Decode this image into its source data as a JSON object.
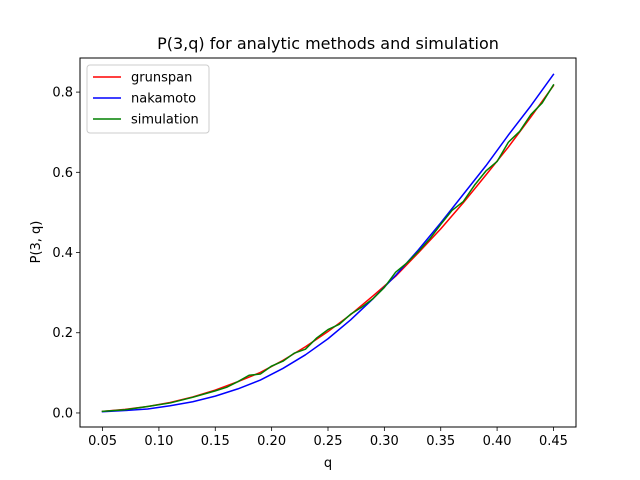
{
  "chart_data": {
    "type": "line",
    "title": "P(3,q) for analytic methods and simulation",
    "xlabel": "q",
    "ylabel": "P(3, q)",
    "xlim": [
      0.03,
      0.47
    ],
    "ylim": [
      -0.035,
      0.885
    ],
    "xticks": [
      0.05,
      0.1,
      0.15,
      0.2,
      0.25,
      0.3,
      0.35,
      0.4,
      0.45
    ],
    "xtick_labels": [
      "0.05",
      "0.10",
      "0.15",
      "0.20",
      "0.25",
      "0.30",
      "0.35",
      "0.40",
      "0.45"
    ],
    "yticks": [
      0.0,
      0.2,
      0.4,
      0.6,
      0.8
    ],
    "ytick_labels": [
      "0.0",
      "0.2",
      "0.4",
      "0.6",
      "0.8"
    ],
    "grid": false,
    "legend_position": "top-left",
    "series": [
      {
        "name": "grunspan",
        "color": "#ff0000",
        "x": [
          0.05,
          0.07,
          0.09,
          0.11,
          0.13,
          0.15,
          0.17,
          0.19,
          0.21,
          0.23,
          0.25,
          0.27,
          0.29,
          0.31,
          0.33,
          0.35,
          0.37,
          0.39,
          0.41,
          0.43,
          0.45
        ],
        "y": [
          0.004,
          0.009,
          0.016,
          0.026,
          0.04,
          0.057,
          0.078,
          0.101,
          0.131,
          0.165,
          0.203,
          0.245,
          0.292,
          0.341,
          0.399,
          0.459,
          0.524,
          0.593,
          0.663,
          0.738,
          0.816
        ]
      },
      {
        "name": "nakamoto",
        "color": "#0000ff",
        "x": [
          0.05,
          0.07,
          0.09,
          0.11,
          0.13,
          0.15,
          0.17,
          0.19,
          0.21,
          0.23,
          0.25,
          0.27,
          0.29,
          0.31,
          0.33,
          0.35,
          0.37,
          0.39,
          0.41,
          0.43,
          0.45
        ],
        "y": [
          0.003,
          0.006,
          0.01,
          0.018,
          0.028,
          0.042,
          0.06,
          0.082,
          0.111,
          0.145,
          0.185,
          0.232,
          0.285,
          0.343,
          0.406,
          0.474,
          0.545,
          0.616,
          0.693,
          0.766,
          0.844
        ]
      },
      {
        "name": "simulation",
        "color": "#008000",
        "x": [
          0.05,
          0.07,
          0.09,
          0.11,
          0.13,
          0.15,
          0.16,
          0.17,
          0.18,
          0.19,
          0.2,
          0.21,
          0.22,
          0.23,
          0.24,
          0.25,
          0.26,
          0.27,
          0.28,
          0.29,
          0.3,
          0.31,
          0.32,
          0.33,
          0.34,
          0.35,
          0.36,
          0.37,
          0.38,
          0.39,
          0.4,
          0.41,
          0.42,
          0.43,
          0.44,
          0.45
        ],
        "y": [
          0.004,
          0.008,
          0.016,
          0.025,
          0.039,
          0.055,
          0.064,
          0.078,
          0.094,
          0.097,
          0.117,
          0.129,
          0.149,
          0.159,
          0.187,
          0.208,
          0.221,
          0.246,
          0.264,
          0.285,
          0.313,
          0.351,
          0.374,
          0.402,
          0.433,
          0.47,
          0.505,
          0.527,
          0.568,
          0.603,
          0.627,
          0.675,
          0.702,
          0.744,
          0.773,
          0.818
        ]
      }
    ]
  }
}
